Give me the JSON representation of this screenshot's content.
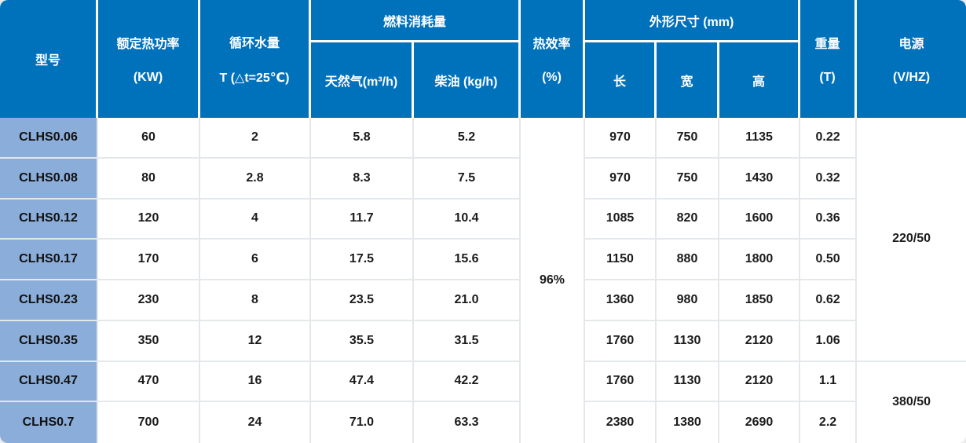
{
  "colors": {
    "header_bg": "#0072BC",
    "header_text": "#FFFFFF",
    "model_cell_bg": "#8BADD9",
    "grid_line": "#E5E8EB",
    "body_text": "#1B1B1B",
    "page_bg": "#EBEBEB"
  },
  "table": {
    "header": {
      "model": "型号",
      "rated_power_name": "额定热功率",
      "rated_power_unit": "(KW)",
      "circulating_water_name": "循环水量",
      "circulating_water_unit": "T (△t=25℃)",
      "fuel_consumption": "燃料消耗量",
      "natural_gas": "天然气(m³/h)",
      "diesel": "柴油 (kg/h)",
      "thermal_efficiency_name": "热效率",
      "thermal_efficiency_unit": "(%)",
      "dimensions": "外形尺寸 (mm)",
      "length": "长",
      "width": "宽",
      "height": "高",
      "weight_name": "重量",
      "weight_unit": "(T)",
      "power_supply_name": "电源",
      "power_supply_unit": "(V/HZ)"
    },
    "efficiency": {
      "value": "96%",
      "row_span": 8
    },
    "power_supply": [
      {
        "value": "220/50",
        "row_span": 6
      },
      {
        "value": "380/50",
        "row_span": 2
      }
    ],
    "rows": [
      {
        "model": "CLHS0.06",
        "power": "60",
        "water": "2",
        "gas": "5.8",
        "diesel": "5.2",
        "length": "970",
        "width": "750",
        "height": "1135",
        "weight": "0.22"
      },
      {
        "model": "CLHS0.08",
        "power": "80",
        "water": "2.8",
        "gas": "8.3",
        "diesel": "7.5",
        "length": "970",
        "width": "750",
        "height": "1430",
        "weight": "0.32"
      },
      {
        "model": "CLHS0.12",
        "power": "120",
        "water": "4",
        "gas": "11.7",
        "diesel": "10.4",
        "length": "1085",
        "width": "820",
        "height": "1600",
        "weight": "0.36"
      },
      {
        "model": "CLHS0.17",
        "power": "170",
        "water": "6",
        "gas": "17.5",
        "diesel": "15.6",
        "length": "1150",
        "width": "880",
        "height": "1800",
        "weight": "0.50"
      },
      {
        "model": "CLHS0.23",
        "power": "230",
        "water": "8",
        "gas": "23.5",
        "diesel": "21.0",
        "length": "1360",
        "width": "980",
        "height": "1850",
        "weight": "0.62"
      },
      {
        "model": "CLHS0.35",
        "power": "350",
        "water": "12",
        "gas": "35.5",
        "diesel": "31.5",
        "length": "1760",
        "width": "1130",
        "height": "2120",
        "weight": "1.06"
      },
      {
        "model": "CLHS0.47",
        "power": "470",
        "water": "16",
        "gas": "47.4",
        "diesel": "42.2",
        "length": "1760",
        "width": "1130",
        "height": "2120",
        "weight": "1.1"
      },
      {
        "model": "CLHS0.7",
        "power": "700",
        "water": "24",
        "gas": "71.0",
        "diesel": "63.3",
        "length": "2380",
        "width": "1380",
        "height": "2690",
        "weight": "2.2"
      }
    ]
  }
}
